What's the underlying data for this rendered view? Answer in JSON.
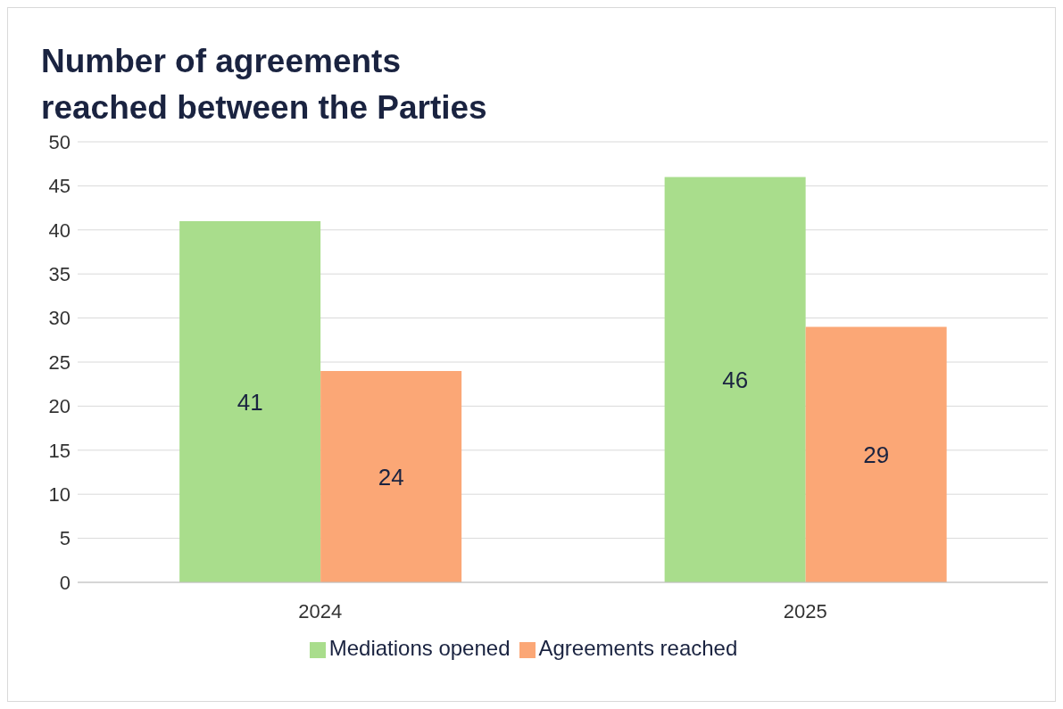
{
  "chart_data": {
    "type": "bar",
    "title": "Number of agreements reached between the Parties",
    "categories": [
      "2024",
      "2025"
    ],
    "series": [
      {
        "name": "Mediations opened",
        "color": "#a9dd8c",
        "values": [
          41,
          46
        ]
      },
      {
        "name": "Agreements reached",
        "color": "#fba776",
        "values": [
          24,
          29
        ]
      }
    ],
    "ylim": [
      0,
      50
    ],
    "yticks": [
      0,
      5,
      10,
      15,
      20,
      25,
      30,
      35,
      40,
      45,
      50
    ],
    "grid": "y",
    "legend": "bottom",
    "data_labels": true
  }
}
